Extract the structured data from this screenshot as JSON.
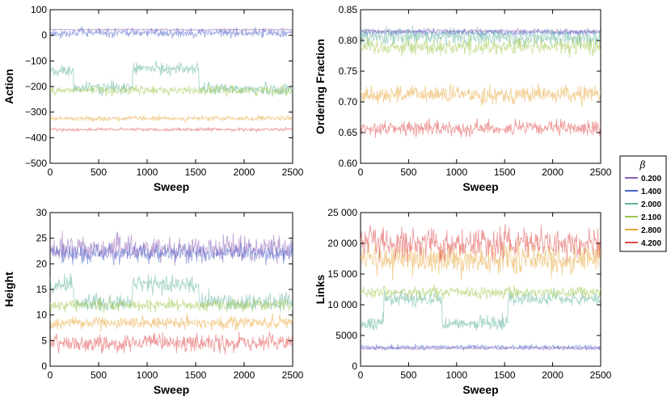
{
  "chart_data": [
    {
      "type": "line",
      "title": "",
      "xlabel": "Sweep",
      "ylabel": "Action",
      "xlim": [
        0,
        2500
      ],
      "ylim": [
        -500,
        100
      ],
      "xticks": [
        "0",
        "500",
        "1000",
        "1500",
        "2000",
        "2500"
      ],
      "yticks": [
        "100",
        "0",
        "−100",
        "−200",
        "−300",
        "−400",
        "−500"
      ],
      "series": [
        {
          "name": "0.200",
          "color": "#8e5bb5",
          "level": 22,
          "noise": 3
        },
        {
          "name": "1.400",
          "color": "#4a63c9",
          "level": 10,
          "noise": 15
        },
        {
          "name": "2.000",
          "color": "#5fb39c",
          "segments": [
            [
              0,
              240,
              -140
            ],
            [
              240,
              850,
              -205
            ],
            [
              850,
              1530,
              -130
            ],
            [
              1530,
              2500,
              -210
            ]
          ],
          "noise": 20
        },
        {
          "name": "2.100",
          "color": "#9ec64a",
          "level": -215,
          "noise": 15
        },
        {
          "name": "2.800",
          "color": "#e8a83c",
          "level": -325,
          "noise": 8
        },
        {
          "name": "4.200",
          "color": "#e04a4a",
          "level": -368,
          "noise": 5
        }
      ]
    },
    {
      "type": "line",
      "title": "",
      "xlabel": "Sweep",
      "ylabel": "Ordering Fraction",
      "xlim": [
        0,
        2500
      ],
      "ylim": [
        0.6,
        0.85
      ],
      "xticks": [
        "0",
        "500",
        "1000",
        "1500",
        "2000",
        "2500"
      ],
      "yticks": [
        "0.85",
        "0.80",
        "0.75",
        "0.70",
        "0.65",
        "0.60"
      ],
      "series": [
        {
          "name": "0.200",
          "color": "#8e5bb5",
          "level": 0.815,
          "noise": 0.003
        },
        {
          "name": "1.400",
          "color": "#4a63c9",
          "level": 0.813,
          "noise": 0.004
        },
        {
          "name": "2.000",
          "color": "#5fb39c",
          "level": 0.805,
          "noise": 0.012
        },
        {
          "name": "2.100",
          "color": "#9ec64a",
          "level": 0.79,
          "noise": 0.012
        },
        {
          "name": "2.800",
          "color": "#e8a83c",
          "level": 0.712,
          "noise": 0.012
        },
        {
          "name": "4.200",
          "color": "#e04a4a",
          "level": 0.657,
          "noise": 0.01
        }
      ]
    },
    {
      "type": "line",
      "title": "",
      "xlabel": "Sweep",
      "ylabel": "Height",
      "xlim": [
        0,
        2500
      ],
      "ylim": [
        0,
        30
      ],
      "xticks": [
        "0",
        "500",
        "1000",
        "1500",
        "2000",
        "2500"
      ],
      "yticks": [
        "30",
        "25",
        "20",
        "15",
        "10",
        "5",
        "0"
      ],
      "series": [
        {
          "name": "0.200",
          "color": "#8e5bb5",
          "level": 23,
          "noise": 2
        },
        {
          "name": "1.400",
          "color": "#4a63c9",
          "level": 22,
          "noise": 1.5
        },
        {
          "name": "2.000",
          "color": "#5fb39c",
          "segments": [
            [
              0,
              240,
              16
            ],
            [
              240,
              850,
              12.5
            ],
            [
              850,
              1530,
              16
            ],
            [
              1530,
              2500,
              12.5
            ]
          ],
          "noise": 1.5
        },
        {
          "name": "2.100",
          "color": "#9ec64a",
          "level": 12,
          "noise": 1
        },
        {
          "name": "2.800",
          "color": "#e8a83c",
          "level": 8.5,
          "noise": 1
        },
        {
          "name": "4.200",
          "color": "#e04a4a",
          "level": 4.5,
          "noise": 1.5
        }
      ]
    },
    {
      "type": "line",
      "title": "",
      "xlabel": "Sweep",
      "ylabel": "Links",
      "xlim": [
        0,
        2500
      ],
      "ylim": [
        0,
        25000
      ],
      "xticks": [
        "0",
        "500",
        "1000",
        "1500",
        "2000",
        "2500"
      ],
      "yticks": [
        "25 000",
        "20 000",
        "15 000",
        "10 000",
        "5000",
        "0"
      ],
      "series": [
        {
          "name": "0.200",
          "color": "#8e5bb5",
          "level": 2900,
          "noise": 200
        },
        {
          "name": "1.400",
          "color": "#4a63c9",
          "level": 3100,
          "noise": 300
        },
        {
          "name": "2.000",
          "color": "#5fb39c",
          "segments": [
            [
              0,
              240,
              7000
            ],
            [
              240,
              850,
              11000
            ],
            [
              850,
              1530,
              7000
            ],
            [
              1530,
              2500,
              11000
            ]
          ],
          "noise": 1000
        },
        {
          "name": "2.100",
          "color": "#9ec64a",
          "level": 12000,
          "noise": 800
        },
        {
          "name": "2.800",
          "color": "#e8a83c",
          "level": 17500,
          "noise": 2000
        },
        {
          "name": "4.200",
          "color": "#e04a4a",
          "level": 20000,
          "noise": 2000
        }
      ]
    }
  ],
  "legend": {
    "title": "β",
    "items": [
      {
        "label": "0.200",
        "color": "#8e5bb5"
      },
      {
        "label": "1.400",
        "color": "#4a63c9"
      },
      {
        "label": "2.000",
        "color": "#5fb39c"
      },
      {
        "label": "2.100",
        "color": "#9ec64a"
      },
      {
        "label": "2.800",
        "color": "#e8a83c"
      },
      {
        "label": "4.200",
        "color": "#e04a4a"
      }
    ]
  }
}
